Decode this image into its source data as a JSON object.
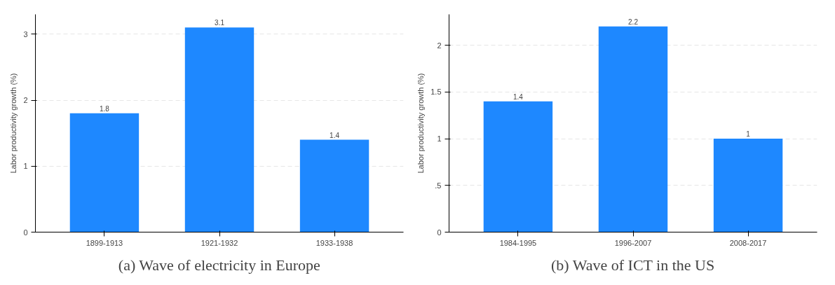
{
  "chart_data": [
    {
      "type": "bar",
      "title": "(a) Wave of electricity in Europe",
      "ylabel": "Labor productivity growth (%)",
      "categories": [
        "1899-1913",
        "1921-1932",
        "1933-1938"
      ],
      "values": [
        1.8,
        3.1,
        1.4
      ],
      "color": "#1e88ff",
      "ylim": [
        0,
        3.3
      ],
      "yticks": [
        0,
        1,
        2,
        3
      ],
      "grid": "y",
      "data_labels": true
    },
    {
      "type": "bar",
      "title": "(b) Wave of ICT in the US",
      "ylabel": "Labor productivity growth (%)",
      "categories": [
        "1984-1995",
        "1996-2007",
        "2008-2017"
      ],
      "values": [
        1.4,
        2.2,
        1
      ],
      "color": "#1e88ff",
      "ylim": [
        0,
        2.33
      ],
      "yticks": [
        0,
        {
          "value": 0.5,
          "label": ".5"
        },
        1,
        1.5,
        2
      ],
      "grid": "y",
      "data_labels": true
    }
  ]
}
